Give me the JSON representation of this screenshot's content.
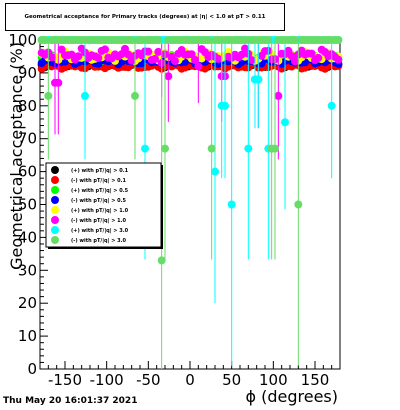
{
  "header": {
    "title": "Geometrical acceptance for Primary tracks (degrees) at |η| < 1.0 at pT > 0.11",
    "datestamp": "Thu May 20 16:01:37 2021"
  },
  "chart_data": {
    "type": "scatter",
    "xlabel": "ϕ (degrees)",
    "ylabel": "Geometrical acceptance (%)",
    "xlim": [
      -180,
      180
    ],
    "ylim": [
      0,
      100
    ],
    "x_ticks": [
      -150,
      -100,
      -50,
      0,
      50,
      100,
      150
    ],
    "y_ticks": [
      0,
      10,
      20,
      30,
      40,
      50,
      60,
      70,
      80,
      90,
      100
    ],
    "legend_position": "left-middle",
    "series": [
      {
        "name": "(+) with pT/|q| > 0.1",
        "color": "#000000",
        "base": 92.5,
        "amp": 0.8
      },
      {
        "name": "(-) with pT/|q| > 0.1",
        "color": "#ff0000",
        "base": 92.0,
        "amp": 0.8
      },
      {
        "name": "(+) with pT/|q| > 0.5",
        "color": "#00ff00",
        "base": 94.5,
        "amp": 1.0
      },
      {
        "name": "(-) with pT/|q| > 0.5",
        "color": "#0000ff",
        "base": 93.5,
        "amp": 0.9
      },
      {
        "name": "(+) with pT/|q| > 1.0",
        "color": "#ffff00",
        "base": 95.0,
        "amp": 1.5
      },
      {
        "name": "(-) with pT/|q| > 1.0",
        "color": "#ff00ff",
        "base": 95.5,
        "amp": 2.0,
        "outliers": [
          [
            -160,
            87
          ],
          [
            -35,
            93
          ],
          [
            -25,
            89
          ],
          [
            10,
            92
          ],
          [
            40,
            89
          ],
          [
            80,
            88
          ],
          [
            105,
            83
          ]
        ]
      },
      {
        "name": "(+) with pT/|q| > 3.0",
        "color": "#00ffff",
        "base": 100,
        "amp": 0.0,
        "outliers": [
          [
            -125,
            83
          ],
          [
            -55,
            67
          ],
          [
            -48,
            75
          ],
          [
            30,
            60
          ],
          [
            40,
            80
          ],
          [
            50,
            50
          ],
          [
            70,
            67
          ],
          [
            80,
            88
          ],
          [
            95,
            67
          ],
          [
            115,
            75
          ],
          [
            170,
            80
          ]
        ]
      },
      {
        "name": "(-) with pT/|q| > 3.0",
        "color": "#66dd66",
        "base": 100,
        "amp": 0.0,
        "outliers": [
          [
            -170,
            83
          ],
          [
            -65,
            83
          ],
          [
            -35,
            33
          ],
          [
            -30,
            67
          ],
          [
            25,
            67
          ],
          [
            100,
            67
          ],
          [
            130,
            50
          ]
        ]
      }
    ]
  }
}
